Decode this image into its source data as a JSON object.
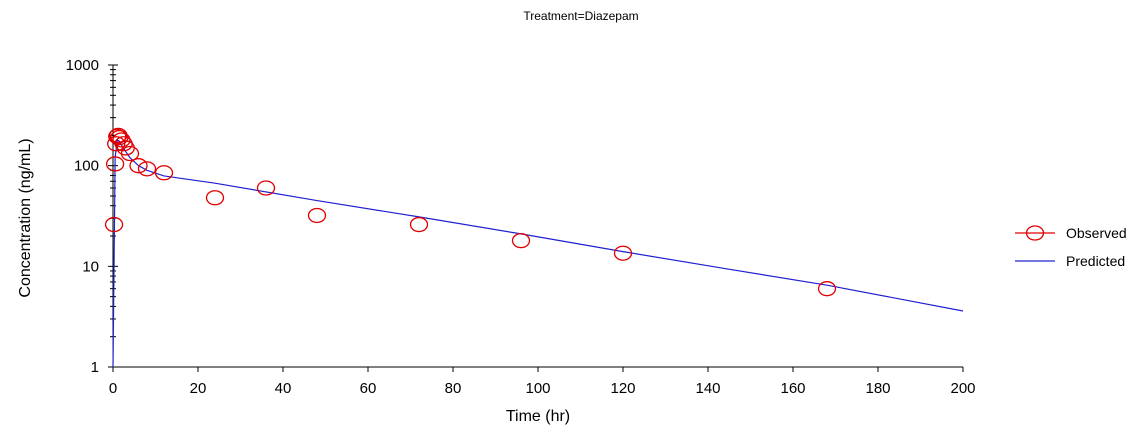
{
  "chart_data": {
    "type": "scatter",
    "title": "Treatment=Diazepam",
    "xlabel": "Time (hr)",
    "ylabel": "Concentration (ng/mL)",
    "xlim": [
      0,
      200
    ],
    "ylim": [
      1,
      1000
    ],
    "yscale": "log",
    "grid": false,
    "legend_position": "right",
    "x_ticks": [
      "0",
      "20",
      "40",
      "60",
      "80",
      "100",
      "120",
      "140",
      "160",
      "180",
      "200"
    ],
    "y_ticks": [
      "1",
      "10",
      "100",
      "1000"
    ],
    "series": [
      {
        "name": "Observed",
        "marker": "open-circle",
        "color": "#e00000",
        "x": [
          0.25,
          0.5,
          0.75,
          1,
          1.25,
          1.5,
          2,
          2.5,
          3,
          4,
          6,
          8,
          12,
          24,
          36,
          48,
          72,
          96,
          120,
          168
        ],
        "y": [
          26,
          104,
          165,
          195,
          200,
          190,
          180,
          165,
          150,
          132,
          100,
          93,
          85,
          48,
          60,
          32,
          26,
          18,
          13.5,
          6
        ]
      },
      {
        "name": "Predicted",
        "style": "line",
        "color": "#2020d0",
        "x": [
          0,
          0.5,
          1,
          1.5,
          2,
          3,
          4,
          6,
          8,
          12,
          24,
          48,
          72,
          96,
          120,
          144,
          168,
          200
        ],
        "y": [
          0,
          120,
          180,
          175,
          160,
          138,
          120,
          100,
          90,
          79,
          67,
          45,
          31,
          21,
          14,
          9.5,
          6.5,
          3.6
        ]
      }
    ]
  }
}
